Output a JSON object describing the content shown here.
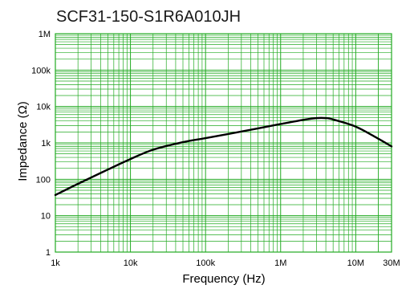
{
  "chart_data": {
    "type": "line",
    "title": "SCF31-150-S1R6A010JH",
    "xlabel": "Frequency (Hz)",
    "ylabel": "Impedance (Ω)",
    "x_scale": "log",
    "y_scale": "log",
    "xlim": [
      1000,
      30000000
    ],
    "ylim": [
      1,
      1000000
    ],
    "grid": true,
    "x_ticks": [
      {
        "value": 1000,
        "label": "1k"
      },
      {
        "value": 10000,
        "label": "10k"
      },
      {
        "value": 100000,
        "label": "100k"
      },
      {
        "value": 1000000,
        "label": "1M"
      },
      {
        "value": 10000000,
        "label": "10M"
      },
      {
        "value": 30000000,
        "label": "30M"
      }
    ],
    "y_ticks": [
      {
        "value": 1,
        "label": "1"
      },
      {
        "value": 10,
        "label": "10"
      },
      {
        "value": 100,
        "label": "100"
      },
      {
        "value": 1000,
        "label": "1k"
      },
      {
        "value": 10000,
        "label": "10k"
      },
      {
        "value": 100000,
        "label": "100k"
      },
      {
        "value": 1000000,
        "label": "1M"
      }
    ],
    "series": [
      {
        "x": [
          1000,
          2000,
          5000,
          10000,
          20000,
          50000,
          100000,
          200000,
          500000,
          1000000,
          2000000,
          3000000,
          4000000,
          5000000,
          10000000,
          20000000,
          30000000
        ],
        "y": [
          37,
          75,
          185,
          360,
          650,
          1050,
          1350,
          1750,
          2500,
          3300,
          4300,
          4800,
          4800,
          4400,
          2800,
          1300,
          800
        ]
      }
    ],
    "colors": {
      "grid": "#22aa22",
      "line": "#000000",
      "frame": "#22aa22"
    }
  }
}
